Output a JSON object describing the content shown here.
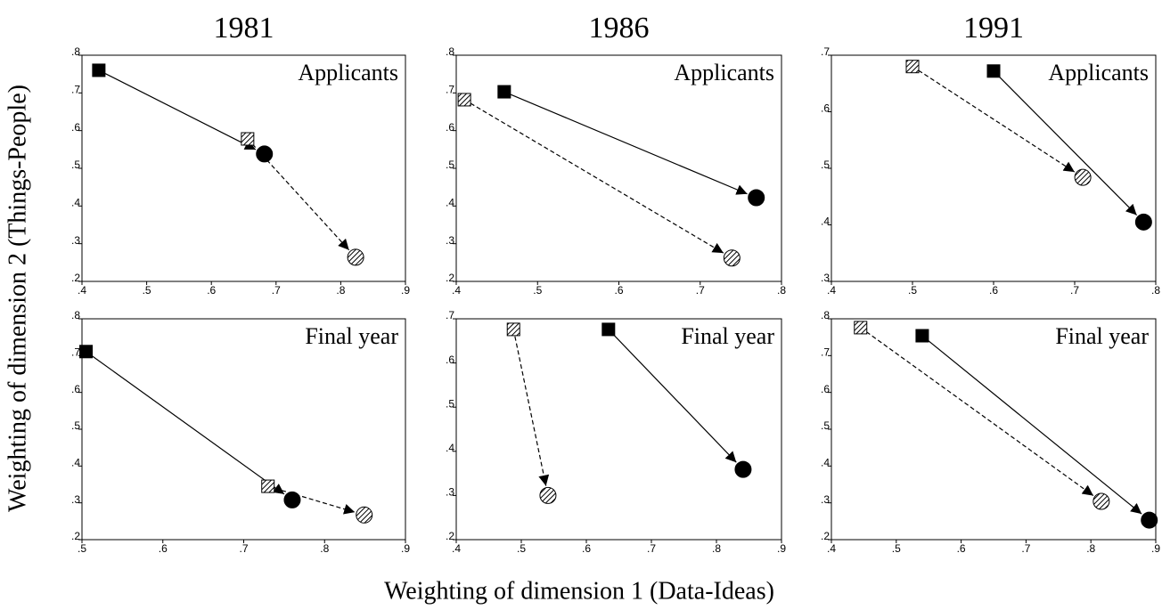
{
  "xlabel": "Weighting of dimension 1 (Data-Ideas)",
  "ylabel": "Weighting of dimension 2 (Things-People)",
  "chart_data": [
    {
      "type": "scatter",
      "title": "1981",
      "annotation": "Applicants",
      "xlim": [
        0.4,
        0.9
      ],
      "xticks": [
        {
          "value": 0.4,
          "label": ".4"
        },
        {
          "value": 0.5,
          "label": ".5"
        },
        {
          "value": 0.6,
          "label": ".6"
        },
        {
          "value": 0.7,
          "label": ".7"
        },
        {
          "value": 0.8,
          "label": ".8"
        },
        {
          "value": 0.9,
          "label": ".9"
        }
      ],
      "ylim": [
        0.2,
        0.8
      ],
      "yticks": [
        {
          "value": 0.2,
          "label": ".2"
        },
        {
          "value": 0.3,
          "label": ".3"
        },
        {
          "value": 0.4,
          "label": ".4"
        },
        {
          "value": 0.5,
          "label": ".5"
        },
        {
          "value": 0.6,
          "label": ".6"
        },
        {
          "value": 0.7,
          "label": ".7"
        },
        {
          "value": 0.8,
          "label": ".8"
        }
      ],
      "series": [
        {
          "fill": "solid",
          "dashed": false,
          "color": "#000000",
          "x": [
            0.426,
            0.682
          ],
          "values": [
            0.76,
            0.538
          ]
        },
        {
          "fill": "hatched",
          "dashed": true,
          "color": "#000000",
          "x": [
            0.656,
            0.823
          ],
          "values": [
            0.578,
            0.264
          ]
        }
      ]
    },
    {
      "type": "scatter",
      "title": "1986",
      "annotation": "Applicants",
      "xlim": [
        0.4,
        0.8
      ],
      "xticks": [
        {
          "value": 0.4,
          "label": ".4"
        },
        {
          "value": 0.5,
          "label": ".5"
        },
        {
          "value": 0.6,
          "label": ".6"
        },
        {
          "value": 0.7,
          "label": ".7"
        },
        {
          "value": 0.8,
          "label": ".8"
        }
      ],
      "ylim": [
        0.2,
        0.8
      ],
      "yticks": [
        {
          "value": 0.2,
          "label": ".2"
        },
        {
          "value": 0.3,
          "label": ".3"
        },
        {
          "value": 0.4,
          "label": ".4"
        },
        {
          "value": 0.5,
          "label": ".5"
        },
        {
          "value": 0.6,
          "label": ".6"
        },
        {
          "value": 0.7,
          "label": ".7"
        },
        {
          "value": 0.8,
          "label": ".8"
        }
      ],
      "series": [
        {
          "fill": "solid",
          "dashed": false,
          "color": "#000000",
          "x": [
            0.459,
            0.769
          ],
          "values": [
            0.703,
            0.422
          ]
        },
        {
          "fill": "hatched",
          "dashed": true,
          "color": "#000000",
          "x": [
            0.41,
            0.739
          ],
          "values": [
            0.682,
            0.262
          ]
        }
      ]
    },
    {
      "type": "scatter",
      "title": "1991",
      "annotation": "Applicants",
      "xlim": [
        0.4,
        0.8
      ],
      "xticks": [
        {
          "value": 0.4,
          "label": ".4"
        },
        {
          "value": 0.5,
          "label": ".5"
        },
        {
          "value": 0.6,
          "label": ".6"
        },
        {
          "value": 0.7,
          "label": ".7"
        },
        {
          "value": 0.8,
          "label": ".8"
        }
      ],
      "ylim": [
        0.3,
        0.7
      ],
      "yticks": [
        {
          "value": 0.3,
          "label": ".3"
        },
        {
          "value": 0.4,
          "label": ".4"
        },
        {
          "value": 0.5,
          "label": ".5"
        },
        {
          "value": 0.6,
          "label": ".6"
        },
        {
          "value": 0.7,
          "label": ".7"
        }
      ],
      "series": [
        {
          "fill": "solid",
          "dashed": false,
          "color": "#000000",
          "x": [
            0.6,
            0.785
          ],
          "values": [
            0.672,
            0.405
          ]
        },
        {
          "fill": "hatched",
          "dashed": true,
          "color": "#000000",
          "x": [
            0.5,
            0.71
          ],
          "values": [
            0.68,
            0.484
          ]
        }
      ]
    },
    {
      "type": "scatter",
      "annotation": "Final year",
      "xlim": [
        0.5,
        0.9
      ],
      "xticks": [
        {
          "value": 0.5,
          "label": ".5"
        },
        {
          "value": 0.6,
          "label": ".6"
        },
        {
          "value": 0.7,
          "label": ".7"
        },
        {
          "value": 0.8,
          "label": ".8"
        },
        {
          "value": 0.9,
          "label": ".9"
        }
      ],
      "ylim": [
        0.2,
        0.8
      ],
      "yticks": [
        {
          "value": 0.2,
          "label": ".2"
        },
        {
          "value": 0.3,
          "label": ".3"
        },
        {
          "value": 0.4,
          "label": ".4"
        },
        {
          "value": 0.5,
          "label": ".5"
        },
        {
          "value": 0.6,
          "label": ".6"
        },
        {
          "value": 0.7,
          "label": ".7"
        },
        {
          "value": 0.8,
          "label": ".8"
        }
      ],
      "series": [
        {
          "fill": "solid",
          "dashed": false,
          "color": "#000000",
          "x": [
            0.505,
            0.76
          ],
          "values": [
            0.711,
            0.308
          ]
        },
        {
          "fill": "hatched",
          "dashed": true,
          "color": "#000000",
          "x": [
            0.73,
            0.849
          ],
          "values": [
            0.345,
            0.267
          ]
        }
      ]
    },
    {
      "type": "scatter",
      "annotation": "Final year",
      "xlim": [
        0.4,
        0.9
      ],
      "xticks": [
        {
          "value": 0.4,
          "label": ".4"
        },
        {
          "value": 0.5,
          "label": ".5"
        },
        {
          "value": 0.6,
          "label": ".6"
        },
        {
          "value": 0.7,
          "label": ".7"
        },
        {
          "value": 0.8,
          "label": ".8"
        },
        {
          "value": 0.9,
          "label": ".9"
        }
      ],
      "ylim": [
        0.2,
        0.7
      ],
      "yticks": [
        {
          "value": 0.2,
          "label": ".2"
        },
        {
          "value": 0.3,
          "label": ".3"
        },
        {
          "value": 0.4,
          "label": ".4"
        },
        {
          "value": 0.5,
          "label": ".5"
        },
        {
          "value": 0.6,
          "label": ".6"
        },
        {
          "value": 0.7,
          "label": ".7"
        }
      ],
      "series": [
        {
          "fill": "solid",
          "dashed": false,
          "color": "#000000",
          "x": [
            0.634,
            0.841
          ],
          "values": [
            0.676,
            0.359
          ]
        },
        {
          "fill": "hatched",
          "dashed": true,
          "color": "#000000",
          "x": [
            0.488,
            0.541
          ],
          "values": [
            0.676,
            0.3
          ]
        }
      ]
    },
    {
      "type": "scatter",
      "annotation": "Final year",
      "xlim": [
        0.4,
        0.9
      ],
      "xticks": [
        {
          "value": 0.4,
          "label": ".4"
        },
        {
          "value": 0.5,
          "label": ".5"
        },
        {
          "value": 0.6,
          "label": ".6"
        },
        {
          "value": 0.7,
          "label": ".7"
        },
        {
          "value": 0.8,
          "label": ".8"
        },
        {
          "value": 0.9,
          "label": ".9"
        }
      ],
      "ylim": [
        0.2,
        0.8
      ],
      "yticks": [
        {
          "value": 0.2,
          "label": ".2"
        },
        {
          "value": 0.3,
          "label": ".3"
        },
        {
          "value": 0.4,
          "label": ".4"
        },
        {
          "value": 0.5,
          "label": ".5"
        },
        {
          "value": 0.6,
          "label": ".6"
        },
        {
          "value": 0.7,
          "label": ".7"
        },
        {
          "value": 0.8,
          "label": ".8"
        }
      ],
      "series": [
        {
          "fill": "solid",
          "dashed": false,
          "color": "#000000",
          "x": [
            0.54,
            0.89
          ],
          "values": [
            0.754,
            0.253
          ]
        },
        {
          "fill": "hatched",
          "dashed": true,
          "color": "#000000",
          "x": [
            0.445,
            0.816
          ],
          "values": [
            0.776,
            0.304
          ]
        }
      ]
    }
  ]
}
